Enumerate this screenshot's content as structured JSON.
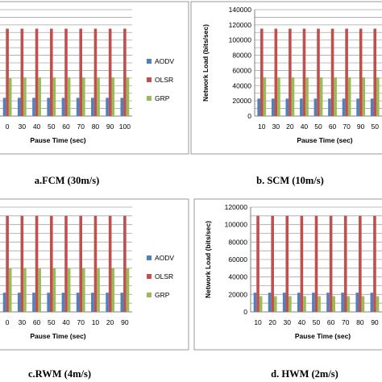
{
  "chart_data": [
    {
      "type": "bar",
      "caption": "a.FCM (30m/s)",
      "xlabel": "Pause Time (sec)",
      "ylabel": "",
      "categories": [
        "0",
        "30",
        "40",
        "50",
        "60",
        "70",
        "80",
        "90",
        "100"
      ],
      "ylim": [
        0,
        140000
      ],
      "yticks": [],
      "grid": true,
      "legend_position": "right",
      "series": [
        {
          "name": "AODV",
          "color": "#4f81bd",
          "values": [
            24000,
            24000,
            24000,
            24000,
            24000,
            24000,
            24000,
            24000,
            24000
          ]
        },
        {
          "name": "OLSR",
          "color": "#c0504d",
          "values": [
            115000,
            115000,
            115000,
            115000,
            115000,
            115000,
            115000,
            115000,
            115000
          ]
        },
        {
          "name": "GRP",
          "color": "#9bbb59",
          "values": [
            50000,
            51000,
            51000,
            51000,
            51000,
            51000,
            51000,
            51000,
            51000
          ]
        }
      ]
    },
    {
      "type": "bar",
      "caption": "b. SCM (10m/s)",
      "xlabel": "Pause Time (sec)",
      "ylabel": "Network Load (bits/sec)",
      "categories": [
        "10",
        "30",
        "20",
        "40",
        "50",
        "60",
        "70",
        "90",
        "50"
      ],
      "ylim": [
        0,
        140000
      ],
      "yticks": [
        "0",
        "20000",
        "40000",
        "60000",
        "80000",
        "100000",
        "120000",
        "140000"
      ],
      "grid": true,
      "legend_position": "right",
      "series": [
        {
          "name": "AODV",
          "color": "#4f81bd",
          "values": [
            23000,
            23000,
            23000,
            23000,
            23000,
            23000,
            23000,
            23000,
            23000
          ]
        },
        {
          "name": "OLSR",
          "color": "#c0504d",
          "values": [
            115000,
            115000,
            115000,
            115000,
            115000,
            115000,
            115000,
            115000,
            115000
          ]
        },
        {
          "name": "GRP",
          "color": "#9bbb59",
          "values": [
            51000,
            51000,
            51000,
            51000,
            51000,
            51000,
            51000,
            51000,
            51000
          ]
        }
      ]
    },
    {
      "type": "bar",
      "caption": "c.RWM (4m/s)",
      "xlabel": "Pause Time (sec)",
      "ylabel": "",
      "categories": [
        "0",
        "30",
        "60",
        "50",
        "40",
        "70",
        "10",
        "20",
        "90"
      ],
      "ylim": [
        0,
        120000
      ],
      "yticks": [],
      "grid": true,
      "legend_position": "right",
      "series": [
        {
          "name": "AODV",
          "color": "#4f81bd",
          "values": [
            22000,
            22000,
            22000,
            22000,
            22000,
            22000,
            22000,
            22000,
            22000
          ]
        },
        {
          "name": "OLSR",
          "color": "#c0504d",
          "values": [
            110000,
            110000,
            110000,
            110000,
            110000,
            110000,
            110000,
            110000,
            110000
          ]
        },
        {
          "name": "GRP",
          "color": "#9bbb59",
          "values": [
            50000,
            50000,
            50000,
            50000,
            50000,
            50000,
            50000,
            50000,
            50000
          ]
        }
      ]
    },
    {
      "type": "bar",
      "caption": "d. HWM (2m/s)",
      "xlabel": "Pause Time (sec)",
      "ylabel": "Network Load (bits/sec)",
      "categories": [
        "10",
        "20",
        "30",
        "40",
        "50",
        "60",
        "70",
        "80",
        "90"
      ],
      "ylim": [
        0,
        120000
      ],
      "yticks": [
        "0",
        "20000",
        "40000",
        "60000",
        "80000",
        "100000",
        "120000"
      ],
      "grid": true,
      "legend_position": "right",
      "series": [
        {
          "name": "AODV",
          "color": "#4f81bd",
          "values": [
            22000,
            22000,
            22000,
            22000,
            22000,
            22000,
            22000,
            22000,
            22000
          ]
        },
        {
          "name": "OLSR",
          "color": "#c0504d",
          "values": [
            110000,
            110000,
            110000,
            110000,
            110000,
            110000,
            110000,
            110000,
            110000
          ]
        },
        {
          "name": "GRP",
          "color": "#9bbb59",
          "values": [
            18000,
            18000,
            18000,
            18000,
            18000,
            18000,
            18000,
            18000,
            18000
          ]
        }
      ]
    }
  ]
}
